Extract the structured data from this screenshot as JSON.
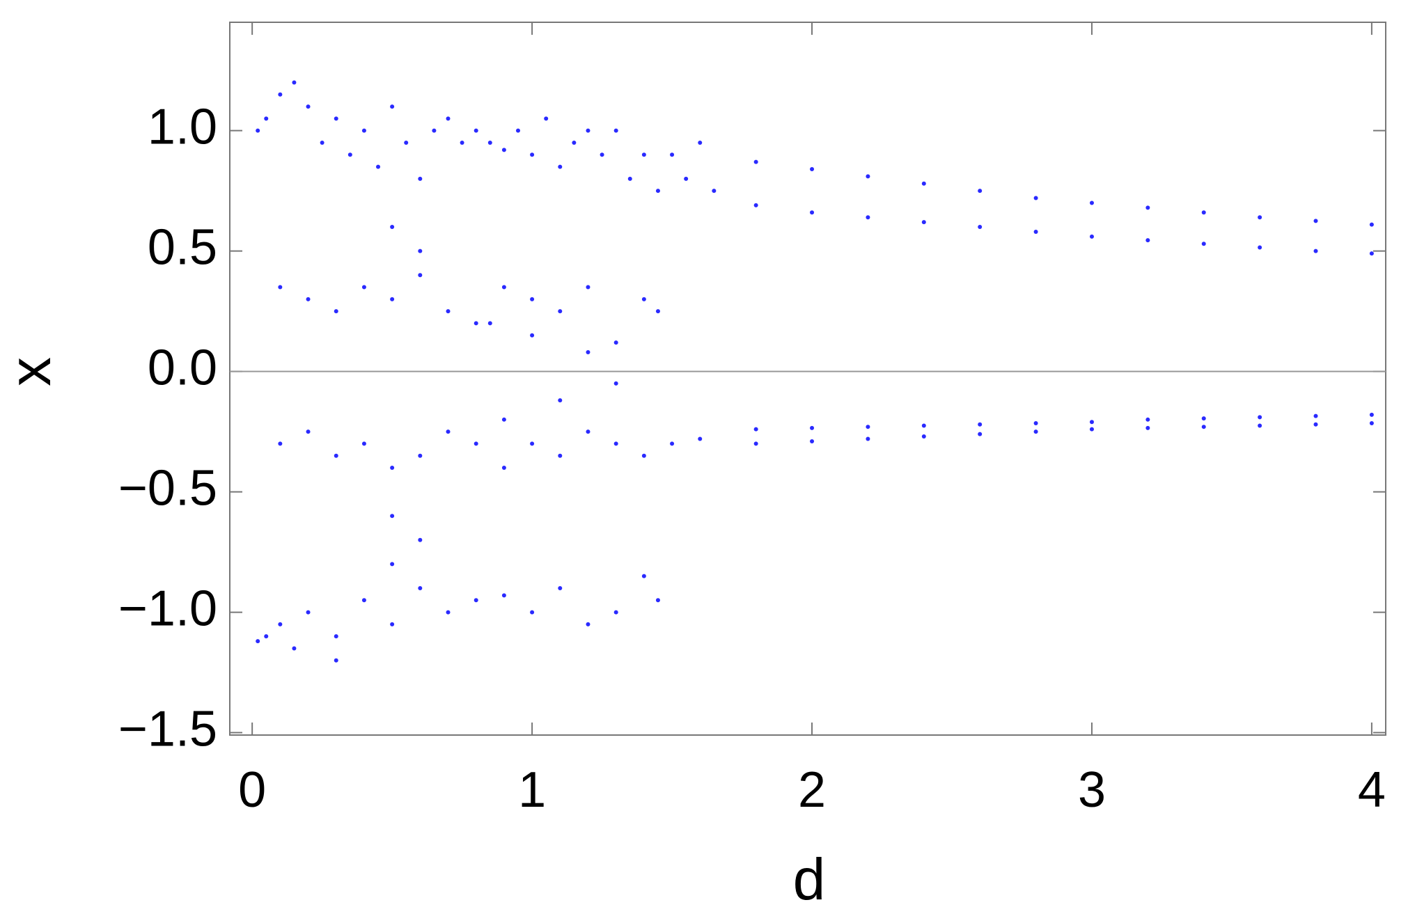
{
  "chart_data": {
    "type": "scatter",
    "x_label": "d",
    "y_label": "x",
    "xlim": [
      -0.08,
      4.05
    ],
    "ylim": [
      -1.51,
      1.45
    ],
    "xticks": [
      0,
      1,
      2,
      3,
      4
    ],
    "yticks": [
      {
        "value": -1.5,
        "label": "−1.5"
      },
      {
        "value": -1,
        "label": "−1.0"
      },
      {
        "value": -0.5,
        "label": "−0.5"
      },
      {
        "value": 0,
        "label": "0.0"
      },
      {
        "value": 0.5,
        "label": "0.5"
      },
      {
        "value": 1,
        "label": "1.0"
      }
    ],
    "color": "#2a2aff",
    "x": [
      0.02,
      0.05,
      0.1,
      0.15,
      0.2,
      0.25,
      0.3,
      0.35,
      0.4,
      0.45,
      0.5,
      0.55,
      0.6,
      0.65,
      0.7,
      0.75,
      0.8,
      0.85,
      0.9,
      0.95,
      1.0,
      1.05,
      1.1,
      1.15,
      1.2,
      1.25,
      1.3,
      1.35,
      1.4,
      1.45,
      1.5,
      1.55,
      1.6,
      1.65,
      0.1,
      0.2,
      0.3,
      0.4,
      0.5,
      0.6,
      0.7,
      0.8,
      0.9,
      1.0,
      1.1,
      1.2,
      1.3,
      1.4,
      0.5,
      0.6,
      1.45,
      0.85,
      1.0,
      1.2,
      0.1,
      0.2,
      0.3,
      0.4,
      0.5,
      0.6,
      0.7,
      0.8,
      0.9,
      1.0,
      1.1,
      1.2,
      1.3,
      1.4,
      1.5,
      1.6,
      0.9,
      1.1,
      1.3,
      0.5,
      0.6,
      0.02,
      0.05,
      0.1,
      0.15,
      0.2,
      0.3,
      0.4,
      0.5,
      0.6,
      0.7,
      0.8,
      0.9,
      1.0,
      1.1,
      1.2,
      1.3,
      1.4,
      1.45,
      0.5,
      0.3,
      1.8,
      2.0,
      2.2,
      2.4,
      2.6,
      2.8,
      3.0,
      3.2,
      3.4,
      3.6,
      3.8,
      4.0,
      1.8,
      2.0,
      2.2,
      2.4,
      2.6,
      2.8,
      3.0,
      3.2,
      3.4,
      3.6,
      3.8,
      4.0,
      1.8,
      2.0,
      2.2,
      2.4,
      2.6,
      2.8,
      3.0,
      3.2,
      3.4,
      3.6,
      3.8,
      4.0,
      1.8,
      2.0,
      2.2,
      2.4,
      2.6,
      2.8,
      3.0,
      3.2,
      3.4,
      3.6,
      3.8,
      4.0
    ],
    "y": [
      1.0,
      1.05,
      1.15,
      1.2,
      1.1,
      0.95,
      1.05,
      0.9,
      1.0,
      0.85,
      1.1,
      0.95,
      0.8,
      1.0,
      1.05,
      0.95,
      1.0,
      0.95,
      0.92,
      1.0,
      0.9,
      1.05,
      0.85,
      0.95,
      1.0,
      0.9,
      1.0,
      0.8,
      0.9,
      0.75,
      0.9,
      0.8,
      0.95,
      0.75,
      0.35,
      0.3,
      0.25,
      0.35,
      0.3,
      0.4,
      0.25,
      0.2,
      0.35,
      0.3,
      0.25,
      0.35,
      0.12,
      0.3,
      0.6,
      0.5,
      0.25,
      0.2,
      0.15,
      0.08,
      -0.3,
      -0.25,
      -0.35,
      -0.3,
      -0.4,
      -0.35,
      -0.25,
      -0.3,
      -0.4,
      -0.3,
      -0.35,
      -0.25,
      -0.3,
      -0.35,
      -0.3,
      -0.28,
      -0.2,
      -0.12,
      -0.05,
      -0.6,
      -0.7,
      -1.12,
      -1.1,
      -1.05,
      -1.15,
      -1.0,
      -1.1,
      -0.95,
      -1.05,
      -0.9,
      -1.0,
      -0.95,
      -0.93,
      -1.0,
      -0.9,
      -1.05,
      -1.0,
      -0.85,
      -0.95,
      -0.8,
      -1.2,
      0.87,
      0.84,
      0.81,
      0.78,
      0.75,
      0.72,
      0.7,
      0.68,
      0.66,
      0.64,
      0.625,
      0.61,
      0.69,
      0.66,
      0.64,
      0.62,
      0.6,
      0.58,
      0.56,
      0.545,
      0.53,
      0.515,
      0.5,
      0.49,
      -0.24,
      -0.235,
      -0.23,
      -0.225,
      -0.22,
      -0.215,
      -0.21,
      -0.2,
      -0.195,
      -0.19,
      -0.185,
      -0.18,
      -0.3,
      -0.29,
      -0.28,
      -0.27,
      -0.26,
      -0.25,
      -0.24,
      -0.235,
      -0.23,
      -0.225,
      -0.22,
      -0.215
    ]
  }
}
